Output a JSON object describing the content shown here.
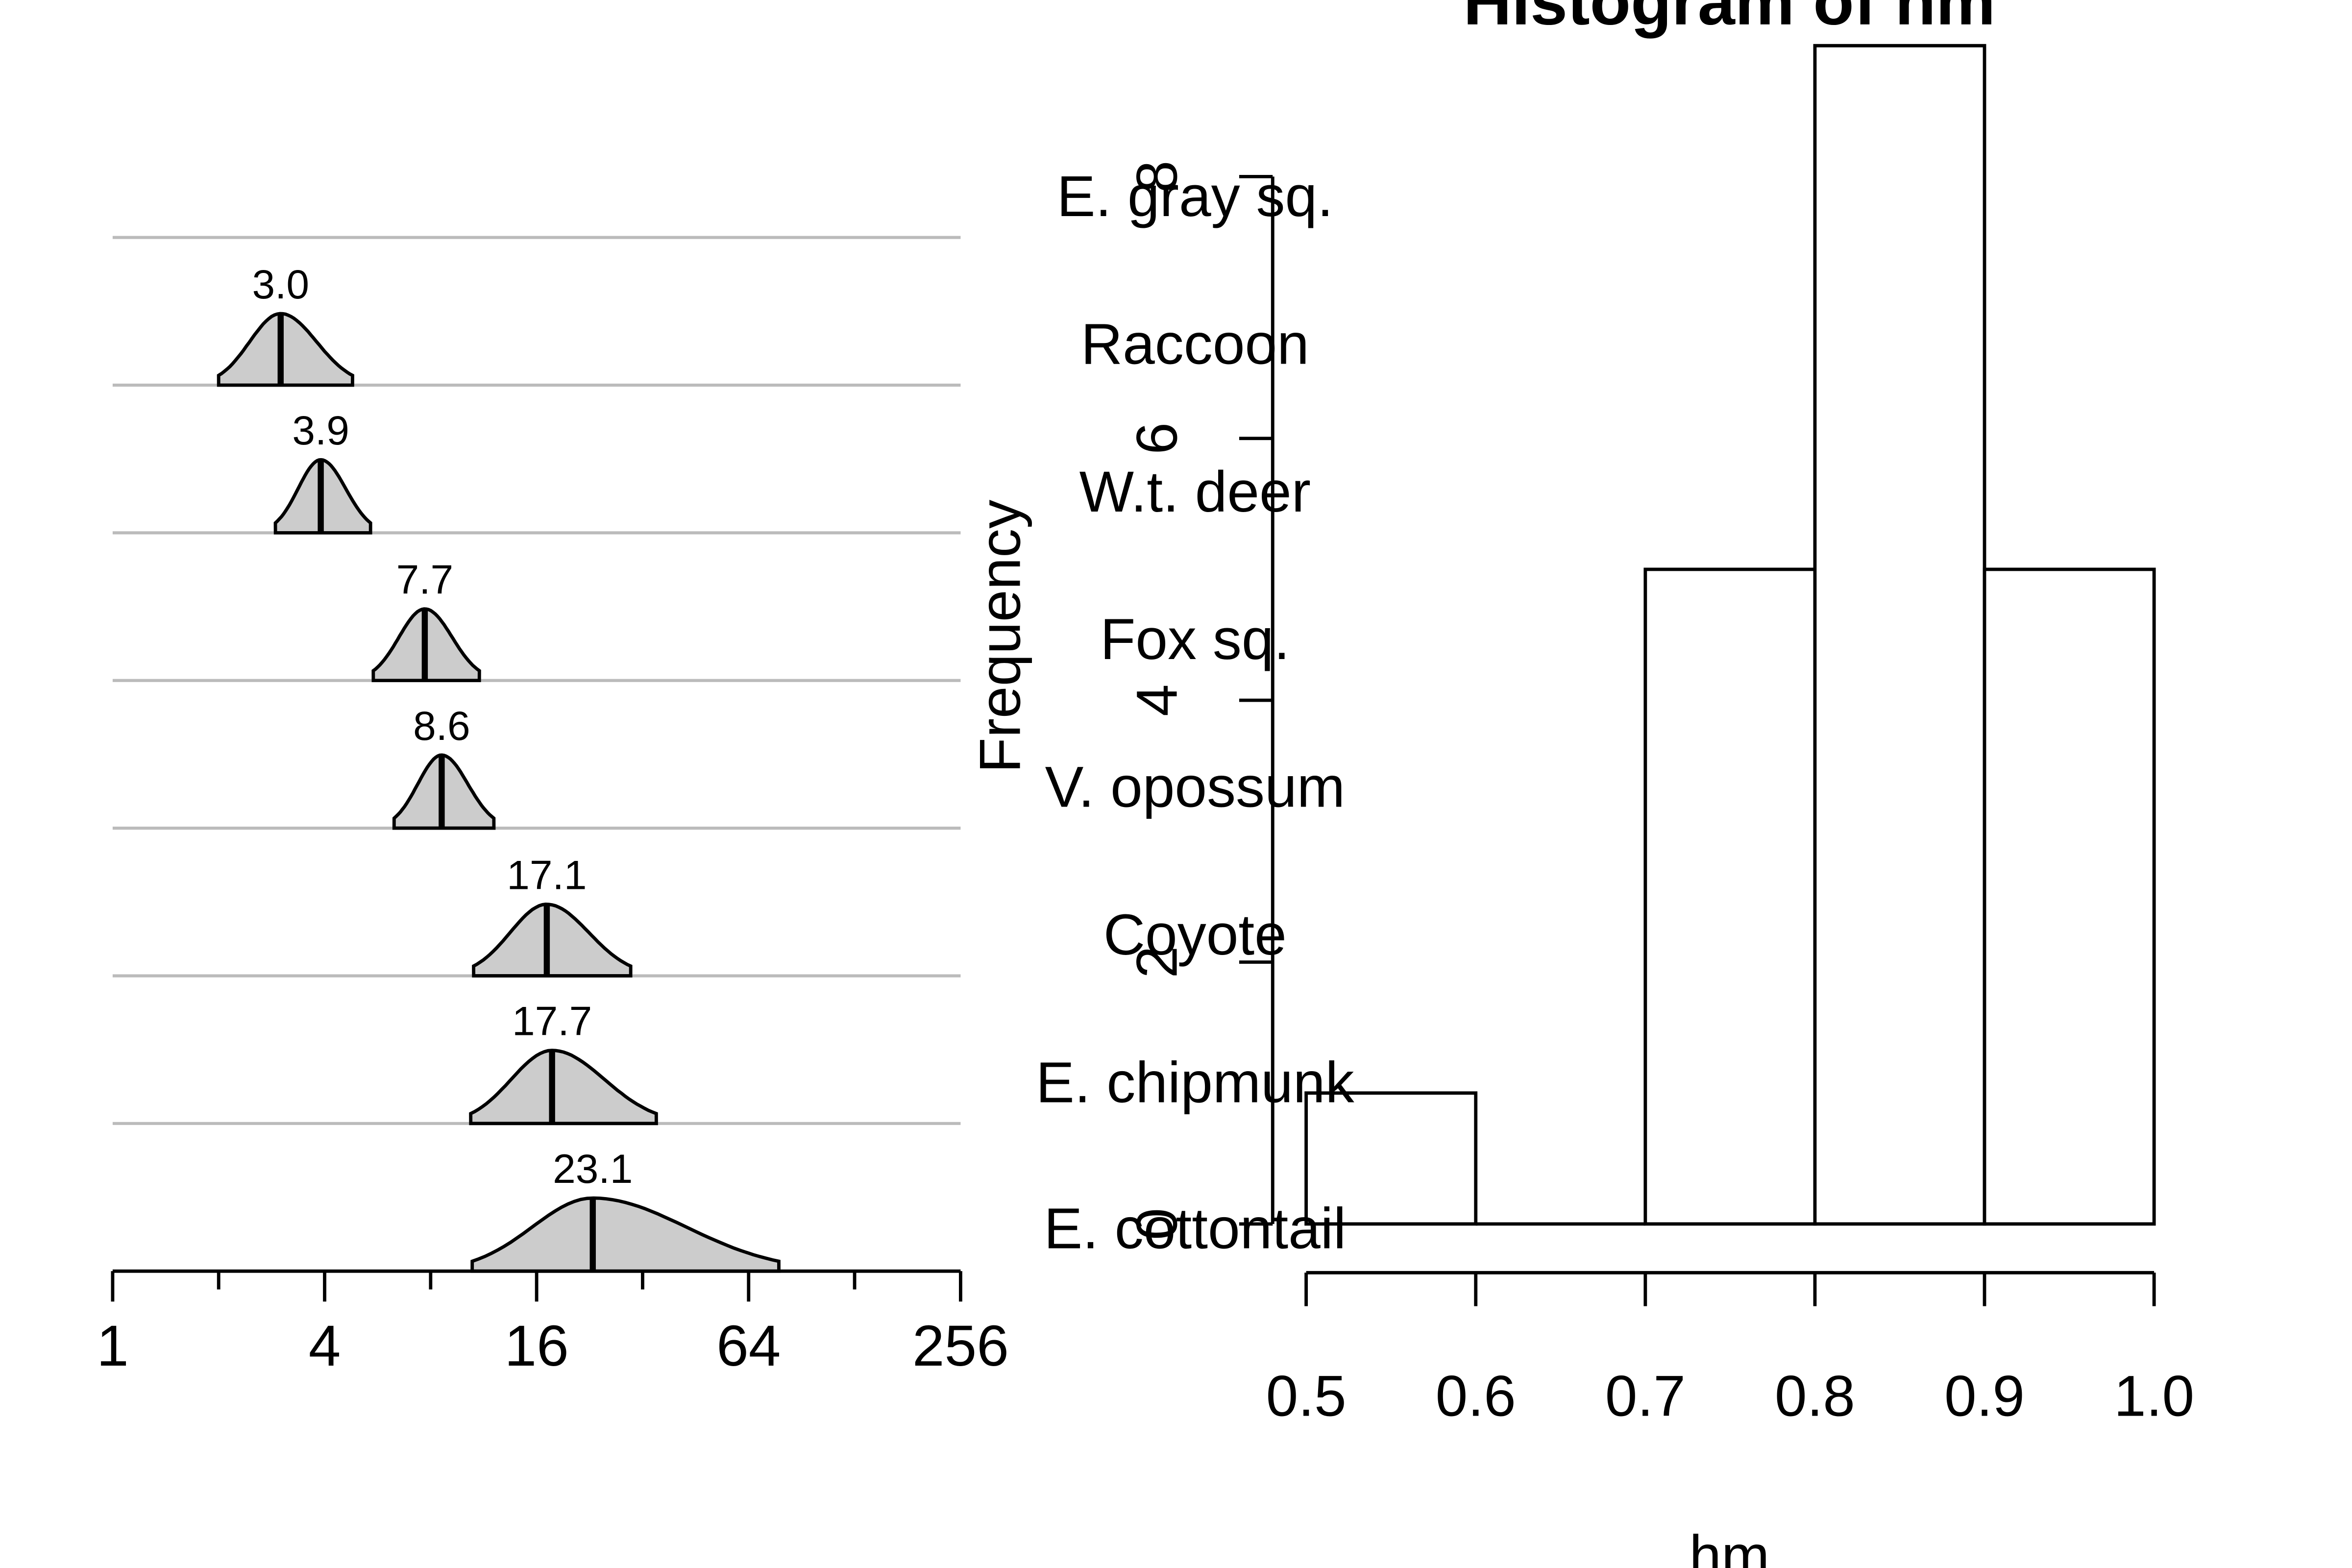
{
  "chart_data": [
    {
      "type": "violin",
      "title": "",
      "xlabel": "",
      "ylabel": "",
      "x_scale": "log2",
      "xlim": [
        1,
        256
      ],
      "x_ticks": [
        "1",
        "4",
        "16",
        "64",
        "256"
      ],
      "categories": [
        "E. gray sq.",
        "Raccoon",
        "W.t. deer",
        "Fox sq.",
        "V. opossum",
        "Coyote",
        "E. chipmunk",
        "E. cottontail"
      ],
      "distributions": [
        {
          "category": "E. gray sq.",
          "median": 3.0,
          "label": "3.0",
          "lo": 2.0,
          "hi": 4.8
        },
        {
          "category": "Raccoon",
          "median": 3.9,
          "label": "3.9",
          "lo": 2.9,
          "hi": 5.4
        },
        {
          "category": "W.t. deer",
          "median": 7.7,
          "label": "7.7",
          "lo": 5.5,
          "hi": 11.0
        },
        {
          "category": "Fox sq.",
          "median": 8.6,
          "label": "8.6",
          "lo": 6.3,
          "hi": 12.1
        },
        {
          "category": "V. opossum",
          "median": 17.1,
          "label": "17.1",
          "lo": 10.6,
          "hi": 29.6
        },
        {
          "category": "Coyote",
          "median": 17.7,
          "label": "17.7",
          "lo": 10.4,
          "hi": 35.0
        },
        {
          "category": "E. chipmunk",
          "median": 23.1,
          "label": "23.1",
          "lo": 10.5,
          "hi": 78.0
        },
        {
          "category": "E. cottontail",
          "median": null,
          "label": "",
          "lo": null,
          "hi": null
        }
      ],
      "grid": true,
      "colors": {
        "fill": "#cccccc",
        "grid": "#bbbbbb",
        "stroke": "#000000"
      }
    },
    {
      "type": "bar",
      "title": "Histogram of hm",
      "xlabel": "hm",
      "ylabel": "Frequency",
      "bins": [
        [
          0.5,
          0.6
        ],
        [
          0.6,
          0.7
        ],
        [
          0.7,
          0.8
        ],
        [
          0.8,
          0.9
        ],
        [
          0.9,
          1.0
        ]
      ],
      "values": [
        1,
        0,
        5,
        9,
        5
      ],
      "x_ticks": [
        "0.5",
        "0.6",
        "0.7",
        "0.8",
        "0.9",
        "1.0"
      ],
      "y_ticks": [
        "0",
        "2",
        "4",
        "6",
        "8"
      ],
      "xlim": [
        0.5,
        1.0
      ],
      "ylim": [
        0,
        8
      ],
      "grid": false
    }
  ]
}
